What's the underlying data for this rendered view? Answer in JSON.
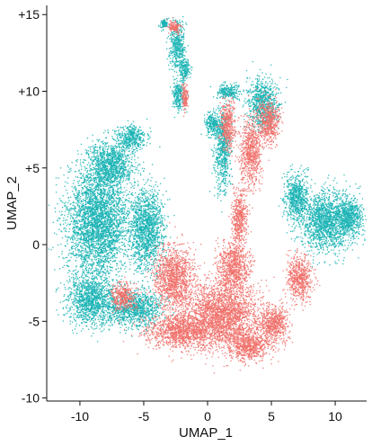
{
  "chart_data": {
    "type": "scatter",
    "xlabel": "UMAP_1",
    "ylabel": "UMAP_2",
    "xlim": [
      -12.6,
      12.6
    ],
    "ylim": [
      -10.2,
      15.6
    ],
    "x_ticks": [
      -10,
      -5,
      0,
      5,
      10
    ],
    "x_tick_labels": [
      "-10",
      "-5",
      "0",
      "5",
      "10"
    ],
    "y_ticks": [
      15,
      10,
      5,
      0,
      -5,
      -10
    ],
    "y_tick_labels": [
      "+15",
      "+10",
      "+5",
      "0",
      "-5",
      "-10"
    ],
    "grid": false,
    "legend": "none",
    "series": [
      {
        "color": "#19b3b4",
        "regions": [
          {
            "center": [
              -8.6,
              1.5
            ],
            "spread": [
              2.4,
              3.6
            ]
          },
          {
            "center": [
              -9.0,
              -3.6
            ],
            "spread": [
              2.0,
              1.6
            ]
          },
          {
            "center": [
              -5.6,
              -4.2
            ],
            "spread": [
              2.0,
              1.2
            ]
          },
          {
            "center": [
              -7.6,
              5.2
            ],
            "spread": [
              1.8,
              1.4
            ]
          },
          {
            "center": [
              -4.8,
              1.0
            ],
            "spread": [
              1.4,
              2.6
            ]
          },
          {
            "center": [
              -6.0,
              7.0
            ],
            "spread": [
              1.2,
              0.8
            ]
          },
          {
            "center": [
              9.3,
              1.5
            ],
            "spread": [
              2.0,
              2.0
            ]
          },
          {
            "center": [
              7.0,
              3.0
            ],
            "spread": [
              1.0,
              1.6
            ]
          },
          {
            "center": [
              11.2,
              1.8
            ],
            "spread": [
              1.0,
              1.2
            ]
          },
          {
            "center": [
              4.3,
              9.2
            ],
            "spread": [
              1.2,
              1.6
            ]
          },
          {
            "center": [
              1.6,
              10.0
            ],
            "spread": [
              0.9,
              0.5
            ]
          },
          {
            "center": [
              1.2,
              6.2
            ],
            "spread": [
              0.6,
              2.6
            ]
          },
          {
            "center": [
              0.4,
              7.8
            ],
            "spread": [
              0.6,
              0.8
            ]
          },
          {
            "center": [
              -2.4,
              13.0
            ],
            "spread": [
              0.6,
              1.6
            ]
          },
          {
            "center": [
              -2.3,
              9.7
            ],
            "spread": [
              0.5,
              1.0
            ]
          },
          {
            "center": [
              -1.8,
              11.4
            ],
            "spread": [
              0.4,
              0.8
            ]
          },
          {
            "center": [
              -3.4,
              14.4
            ],
            "spread": [
              0.3,
              0.3
            ]
          }
        ]
      },
      {
        "color": "#f0706a",
        "regions": [
          {
            "center": [
              3.2,
              -6.6
            ],
            "spread": [
              1.6,
              1.0
            ]
          },
          {
            "center": [
              1.2,
              -4.6
            ],
            "spread": [
              2.8,
              2.2
            ]
          },
          {
            "center": [
              5.2,
              -5.2
            ],
            "spread": [
              1.2,
              1.2
            ]
          },
          {
            "center": [
              -2.0,
              -5.6
            ],
            "spread": [
              2.6,
              1.2
            ]
          },
          {
            "center": [
              -2.6,
              -2.2
            ],
            "spread": [
              1.6,
              2.0
            ]
          },
          {
            "center": [
              2.0,
              -1.4
            ],
            "spread": [
              1.2,
              1.6
            ]
          },
          {
            "center": [
              7.2,
              -2.2
            ],
            "spread": [
              1.0,
              1.4
            ]
          },
          {
            "center": [
              2.5,
              1.8
            ],
            "spread": [
              0.6,
              1.8
            ]
          },
          {
            "center": [
              3.4,
              6.0
            ],
            "spread": [
              0.8,
              2.2
            ]
          },
          {
            "center": [
              4.8,
              8.0
            ],
            "spread": [
              0.9,
              1.4
            ]
          },
          {
            "center": [
              1.6,
              7.8
            ],
            "spread": [
              0.6,
              1.6
            ]
          },
          {
            "center": [
              -1.8,
              9.5
            ],
            "spread": [
              0.25,
              0.9
            ]
          },
          {
            "center": [
              -2.6,
              14.2
            ],
            "spread": [
              0.5,
              0.4
            ]
          },
          {
            "center": [
              -6.6,
              -3.4
            ],
            "spread": [
              1.0,
              0.9
            ]
          }
        ]
      }
    ]
  }
}
